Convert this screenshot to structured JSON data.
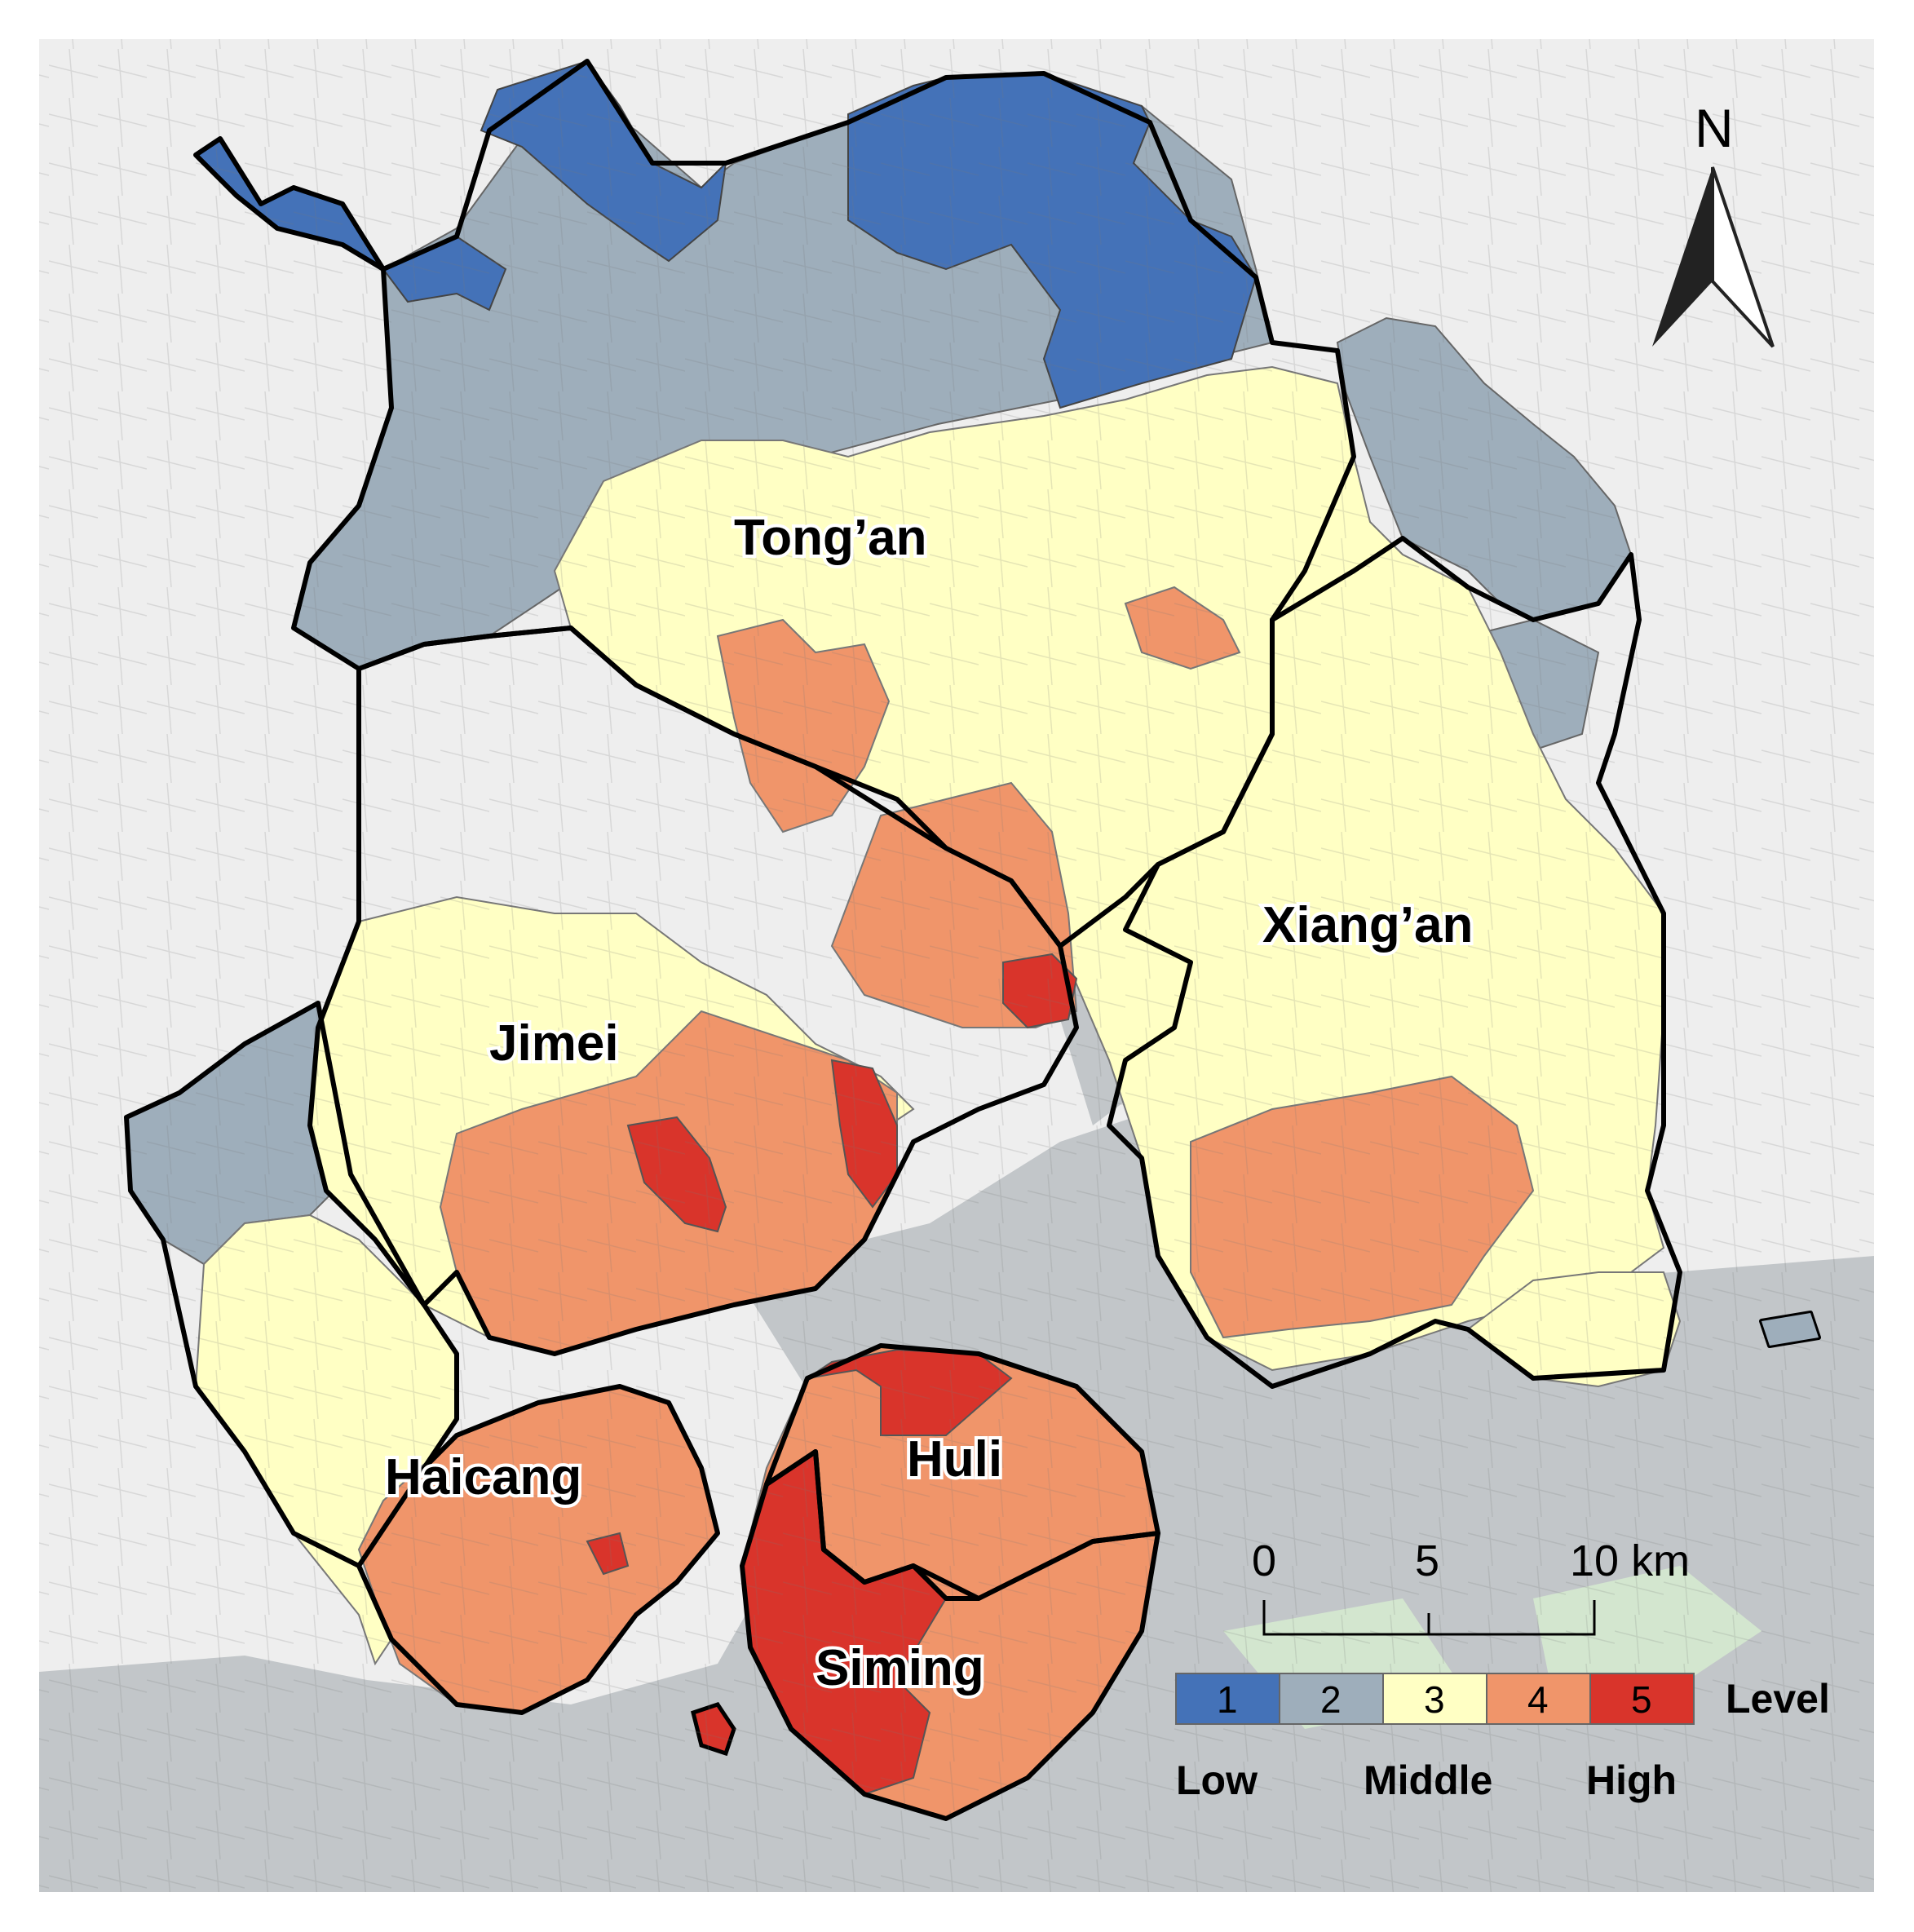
{
  "colors": {
    "level_1": "#4472b8",
    "level_2": "#9eaebb",
    "level_3": "#ffffc4",
    "level_4": "#f0956a",
    "level_5": "#d9342b",
    "background": "#eeeeee",
    "water": "#c2c6c9",
    "boundary": "#000000"
  },
  "districts": [
    {
      "id": "tongan",
      "label": "Tong’an"
    },
    {
      "id": "xiangan",
      "label": "Xiang’an"
    },
    {
      "id": "jimei",
      "label": "Jimei"
    },
    {
      "id": "haicang",
      "label": "Haicang"
    },
    {
      "id": "huli",
      "label": "Huli"
    },
    {
      "id": "siming",
      "label": "Siming"
    }
  ],
  "north_arrow": {
    "letter": "N",
    "icon": "north-arrow-icon"
  },
  "scale_bar": {
    "labels": [
      "0",
      "5",
      "10 km"
    ]
  },
  "legend": {
    "title": "Level",
    "levels": [
      {
        "value": "1",
        "color": "#4472b8"
      },
      {
        "value": "2",
        "color": "#9eaebb"
      },
      {
        "value": "3",
        "color": "#ffffc4"
      },
      {
        "value": "4",
        "color": "#f0956a"
      },
      {
        "value": "5",
        "color": "#d9342b"
      }
    ],
    "words": [
      "Low",
      "Middle",
      "High"
    ]
  }
}
